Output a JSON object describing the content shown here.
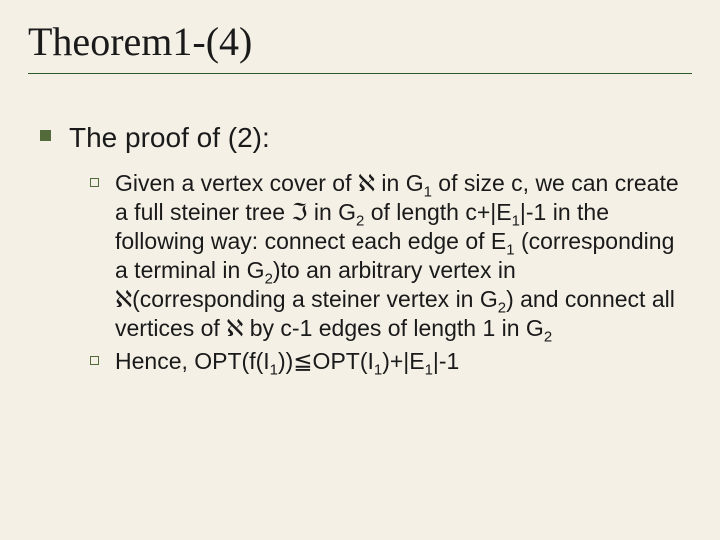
{
  "colors": {
    "background": "#f4f0e6",
    "title_underline": "#2b5a2b",
    "bullet_fill": "#536b3b",
    "bullet_border": "#536b3b",
    "text": "#1a1a1a"
  },
  "typography": {
    "title_font": "Times New Roman",
    "title_size_pt": 40,
    "body_font": "Arial",
    "l1_size_pt": 28,
    "l2_size_pt": 23
  },
  "title": "Theorem1-(4)",
  "level1_text": "The proof of (2):",
  "items": [
    {
      "html": "Given a vertex cover of ℵ in G<sub>1</sub> of size c, we can create a full steiner tree ℑ in G<sub>2</sub> of length c+|E<sub>1</sub>|-1 in the following way: connect each edge of E<sub>1</sub> (corresponding a terminal in G<sub>2</sub>)to an arbitrary vertex in ℵ(corresponding a steiner vertex in G<sub>2</sub>) and connect all vertices of ℵ by c-1 edges of length 1 in G<sub>2</sub>"
    },
    {
      "html": "Hence, OPT(f(I<sub>1</sub>))≦OPT(I<sub>1</sub>)+|E<sub>1</sub>|-1"
    }
  ]
}
